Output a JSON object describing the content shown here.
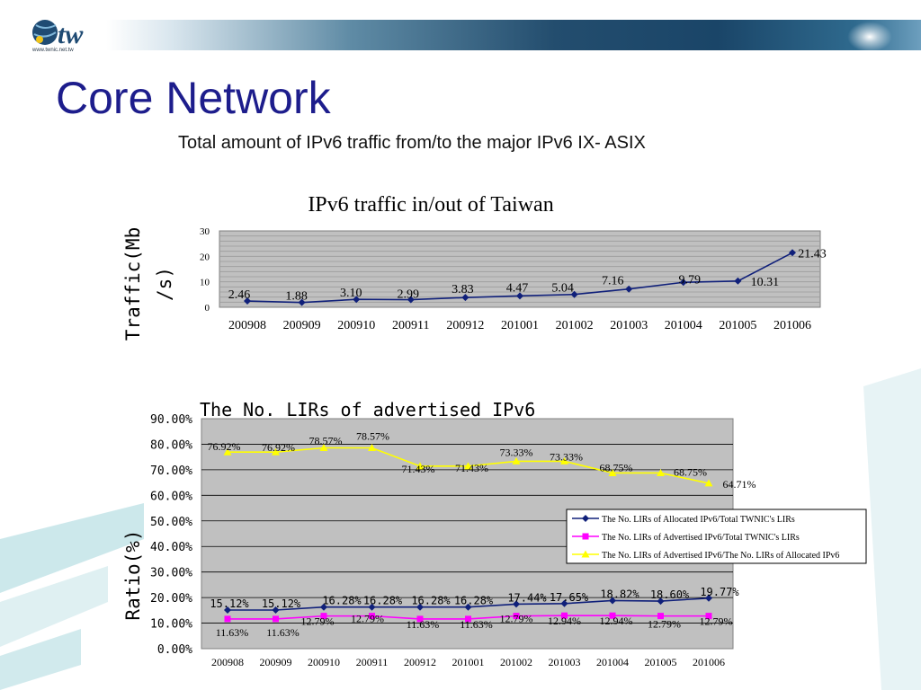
{
  "slide": {
    "title": "Core Network",
    "subtitle": "Total amount of IPv6 traffic from/to the major IPv6 IX- ASIX",
    "logo_text": "tw",
    "logo_url": "www.twnic.net.tw",
    "logo_icon": "globe-icon"
  },
  "colors": {
    "title": "#1d1d8c",
    "plot_bg": "#c0c0c0",
    "series_allocated": "#10207a",
    "series_advertised": "#ff00ff",
    "series_ratio": "#ffff00"
  },
  "chart_data": [
    {
      "type": "line",
      "title": "IPv6 traffic in/out of Taiwan",
      "ylabel": "Traffic(Mb/s)",
      "ylabel_lines": [
        "Traffic(Mb",
        "/s)"
      ],
      "xlabel": "",
      "categories": [
        "200908",
        "200909",
        "200910",
        "200911",
        "200912",
        "201001",
        "201002",
        "201003",
        "201004",
        "201005",
        "201006"
      ],
      "series": [
        {
          "values": [
            2.46,
            1.88,
            3.1,
            2.99,
            3.83,
            4.47,
            5.04,
            7.16,
            9.79,
            10.31,
            21.43
          ],
          "labels": [
            "2.46",
            "1.88",
            "3.10",
            "2.99",
            "3.83",
            "4.47",
            "5.04",
            "7.16",
            "9.79",
            "10.31",
            "21.43"
          ]
        }
      ],
      "ylim": [
        0,
        30
      ],
      "yticks": [
        "0",
        "10",
        "20",
        "30"
      ],
      "grid": true,
      "legend": "none"
    },
    {
      "type": "line",
      "title": "The No. LIRs of advertised IPv6",
      "ylabel": "Ratio(%)",
      "xlabel": "",
      "categories": [
        "200908",
        "200909",
        "200910",
        "200911",
        "200912",
        "201001",
        "201002",
        "201003",
        "201004",
        "201005",
        "201006"
      ],
      "series": [
        {
          "name": "The No. LIRs of Allocated IPv6/Total TWNIC's LIRs",
          "values": [
            15.12,
            15.12,
            16.28,
            16.28,
            16.28,
            16.28,
            17.44,
            17.65,
            18.82,
            18.6,
            19.77
          ],
          "labels": [
            "15.12%",
            "15.12%",
            "16.28%",
            "16.28%",
            "16.28%",
            "16.28%",
            "17.44%",
            "17.65%",
            "18.82%",
            "18.60%",
            "19.77%"
          ]
        },
        {
          "name": "The No. LIRs of Advertised IPv6/Total TWNIC's LIRs",
          "values": [
            11.63,
            11.63,
            12.79,
            12.79,
            11.63,
            11.63,
            12.79,
            12.94,
            12.94,
            12.79,
            12.79
          ],
          "labels": [
            "11.63%",
            "11.63%",
            "12.79%",
            "12.79%",
            "11.63%",
            "11.63%",
            "12.79%",
            "12.94%",
            "12.94%",
            "12.79%",
            "12.79%"
          ]
        },
        {
          "name": "The No. LIRs of Advertised IPv6/The No. LIRs of Allocated IPv6",
          "values": [
            76.92,
            76.92,
            78.57,
            78.57,
            71.43,
            71.43,
            73.33,
            73.33,
            68.75,
            68.75,
            64.71
          ],
          "labels": [
            "76.92%",
            "76.92%",
            "78.57%",
            "78.57%",
            "71.43%",
            "71.43%",
            "73.33%",
            "73.33%",
            "68.75%",
            "68.75%",
            "64.71%"
          ]
        }
      ],
      "ylim": [
        0,
        90
      ],
      "yticks": [
        "0.00%",
        "10.00%",
        "20.00%",
        "30.00%",
        "40.00%",
        "50.00%",
        "60.00%",
        "70.00%",
        "80.00%",
        "90.00%"
      ],
      "grid": true,
      "legend": "right"
    }
  ]
}
